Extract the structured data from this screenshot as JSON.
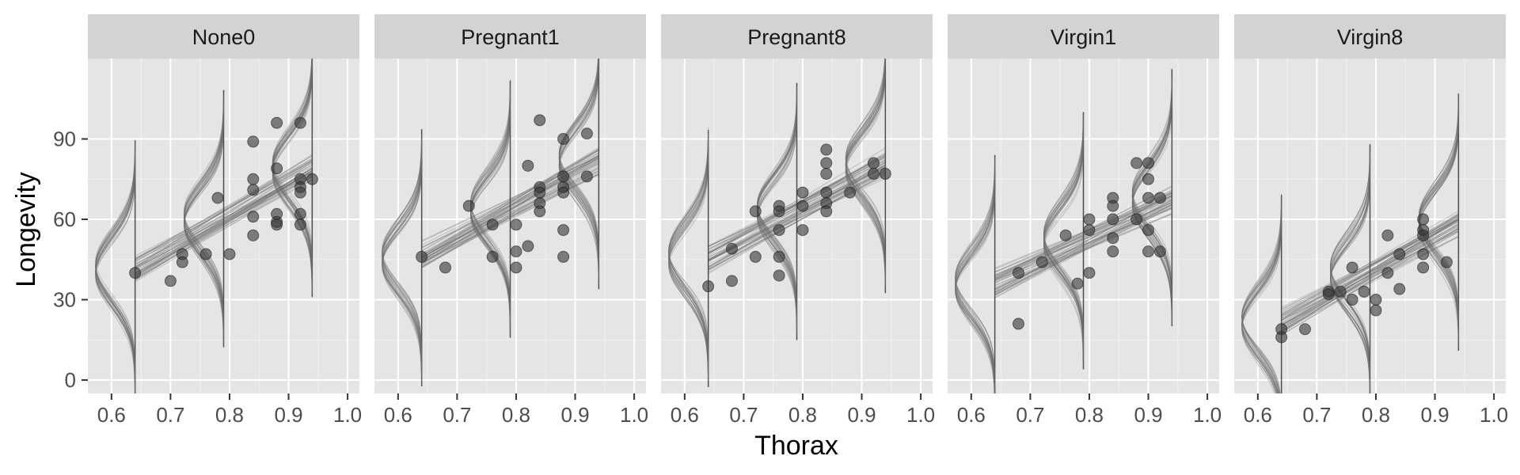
{
  "chart_data": {
    "type": "scatter",
    "xlabel": "Thorax",
    "ylabel": "Longevity",
    "xlim": [
      0.56,
      1.02
    ],
    "ylim": [
      -5,
      120
    ],
    "xticks": [
      "0.6",
      "0.7",
      "0.8",
      "0.9",
      "1.0"
    ],
    "yticks": [
      "0",
      "30",
      "60",
      "90"
    ],
    "xtick_values": [
      0.6,
      0.7,
      0.8,
      0.9,
      1.0
    ],
    "ytick_values": [
      0,
      30,
      60,
      90
    ],
    "grid": true,
    "point_color": "#333333",
    "curve_color": "#6e6e6e",
    "panel_bg": "#e5e5e5",
    "strip_bg": "#d3d3d3",
    "posterior_x_positions": [
      0.64,
      0.79,
      0.94
    ],
    "facets": [
      {
        "name": "None0",
        "fit": {
          "intercept": -38.5,
          "slope": 125
        },
        "points": [
          [
            0.64,
            40
          ],
          [
            0.7,
            37
          ],
          [
            0.72,
            47
          ],
          [
            0.72,
            44
          ],
          [
            0.76,
            47
          ],
          [
            0.78,
            68
          ],
          [
            0.8,
            47
          ],
          [
            0.84,
            89
          ],
          [
            0.84,
            75
          ],
          [
            0.84,
            71
          ],
          [
            0.84,
            61
          ],
          [
            0.84,
            54
          ],
          [
            0.88,
            96
          ],
          [
            0.88,
            79
          ],
          [
            0.88,
            62
          ],
          [
            0.88,
            59
          ],
          [
            0.88,
            58
          ],
          [
            0.92,
            96
          ],
          [
            0.92,
            75
          ],
          [
            0.92,
            72
          ],
          [
            0.92,
            70
          ],
          [
            0.92,
            62
          ],
          [
            0.92,
            58
          ],
          [
            0.94,
            75
          ]
        ]
      },
      {
        "name": "Pregnant1",
        "fit": {
          "intercept": -31.8,
          "slope": 121
        },
        "points": [
          [
            0.64,
            46
          ],
          [
            0.68,
            42
          ],
          [
            0.72,
            65
          ],
          [
            0.76,
            58
          ],
          [
            0.76,
            46
          ],
          [
            0.8,
            58
          ],
          [
            0.8,
            48
          ],
          [
            0.8,
            42
          ],
          [
            0.82,
            80
          ],
          [
            0.82,
            50
          ],
          [
            0.84,
            97
          ],
          [
            0.84,
            72
          ],
          [
            0.84,
            70
          ],
          [
            0.84,
            66
          ],
          [
            0.84,
            63
          ],
          [
            0.88,
            90
          ],
          [
            0.88,
            76
          ],
          [
            0.88,
            72
          ],
          [
            0.88,
            70
          ],
          [
            0.88,
            56
          ],
          [
            0.88,
            46
          ],
          [
            0.92,
            92
          ],
          [
            0.92,
            76
          ]
        ]
      },
      {
        "name": "Pregnant8",
        "fit": {
          "intercept": -29.5,
          "slope": 117
        },
        "points": [
          [
            0.64,
            35
          ],
          [
            0.68,
            49
          ],
          [
            0.68,
            37
          ],
          [
            0.72,
            63
          ],
          [
            0.72,
            46
          ],
          [
            0.76,
            65
          ],
          [
            0.76,
            63
          ],
          [
            0.76,
            56
          ],
          [
            0.76,
            46
          ],
          [
            0.76,
            39
          ],
          [
            0.8,
            70
          ],
          [
            0.8,
            65
          ],
          [
            0.8,
            56
          ],
          [
            0.84,
            86
          ],
          [
            0.84,
            81
          ],
          [
            0.84,
            77
          ],
          [
            0.84,
            70
          ],
          [
            0.84,
            66
          ],
          [
            0.84,
            63
          ],
          [
            0.88,
            70
          ],
          [
            0.92,
            81
          ],
          [
            0.92,
            77
          ],
          [
            0.94,
            77
          ]
        ]
      },
      {
        "name": "Virgin1",
        "fit": {
          "intercept": -32.5,
          "slope": 107
        },
        "points": [
          [
            0.68,
            40
          ],
          [
            0.68,
            21
          ],
          [
            0.72,
            44
          ],
          [
            0.76,
            54
          ],
          [
            0.78,
            36
          ],
          [
            0.8,
            60
          ],
          [
            0.8,
            56
          ],
          [
            0.8,
            40
          ],
          [
            0.84,
            68
          ],
          [
            0.84,
            65
          ],
          [
            0.84,
            60
          ],
          [
            0.84,
            53
          ],
          [
            0.84,
            48
          ],
          [
            0.88,
            81
          ],
          [
            0.88,
            60
          ],
          [
            0.9,
            81
          ],
          [
            0.9,
            75
          ],
          [
            0.9,
            68
          ],
          [
            0.9,
            56
          ],
          [
            0.9,
            48
          ],
          [
            0.92,
            68
          ],
          [
            0.92,
            48
          ]
        ]
      },
      {
        "name": "Virgin8",
        "fit": {
          "intercept": -59.5,
          "slope": 126
        },
        "points": [
          [
            0.64,
            19
          ],
          [
            0.64,
            16
          ],
          [
            0.68,
            19
          ],
          [
            0.72,
            33
          ],
          [
            0.72,
            32
          ],
          [
            0.74,
            33
          ],
          [
            0.76,
            42
          ],
          [
            0.76,
            30
          ],
          [
            0.78,
            33
          ],
          [
            0.8,
            30
          ],
          [
            0.8,
            26
          ],
          [
            0.82,
            54
          ],
          [
            0.82,
            40
          ],
          [
            0.84,
            47
          ],
          [
            0.84,
            34
          ],
          [
            0.88,
            60
          ],
          [
            0.88,
            56
          ],
          [
            0.88,
            54
          ],
          [
            0.88,
            47
          ],
          [
            0.88,
            42
          ],
          [
            0.92,
            44
          ]
        ]
      }
    ]
  }
}
